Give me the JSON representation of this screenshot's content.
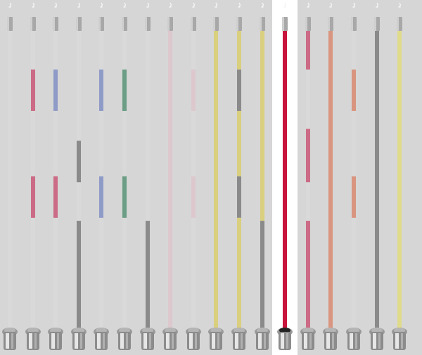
{
  "rack": {
    "base_color": "#d9d9d9",
    "rods": [
      {
        "id": "rod-1",
        "selected": false,
        "segments": []
      },
      {
        "id": "rod-2",
        "selected": false,
        "segments": [
          {
            "color": "#cc6b86",
            "span": [
              0.13,
              0.27
            ]
          },
          {
            "color": "#cc6b86",
            "span": [
              0.49,
              0.63
            ]
          }
        ]
      },
      {
        "id": "rod-3",
        "selected": false,
        "segments": [
          {
            "color": "#8f9bc7",
            "span": [
              0.13,
              0.27
            ]
          },
          {
            "color": "#cc6b86",
            "span": [
              0.49,
              0.63
            ]
          }
        ]
      },
      {
        "id": "rod-4",
        "selected": false,
        "segments": [
          {
            "color": "#8a8a8a",
            "span": [
              0.37,
              0.51
            ]
          },
          {
            "color": "#8a8a8a",
            "span": [
              0.64,
              1.0
            ]
          }
        ]
      },
      {
        "id": "rod-5",
        "selected": false,
        "segments": [
          {
            "color": "#8f9bc7",
            "span": [
              0.13,
              0.27
            ]
          },
          {
            "color": "#8f9bc7",
            "span": [
              0.49,
              0.63
            ]
          }
        ]
      },
      {
        "id": "rod-6",
        "selected": false,
        "segments": [
          {
            "color": "#6c9e85",
            "span": [
              0.13,
              0.27
            ]
          },
          {
            "color": "#6c9e85",
            "span": [
              0.49,
              0.63
            ]
          }
        ]
      },
      {
        "id": "rod-7",
        "selected": false,
        "segments": [
          {
            "color": "#8a8a8a",
            "span": [
              0.64,
              1.0
            ]
          }
        ]
      },
      {
        "id": "rod-8",
        "selected": false,
        "segments": [
          {
            "color": "#dcc8cd",
            "span": [
              0.0,
              1.0
            ]
          }
        ]
      },
      {
        "id": "rod-9",
        "selected": false,
        "segments": [
          {
            "color": "#dcc8cd",
            "span": [
              0.13,
              0.27
            ]
          },
          {
            "color": "#dcc8cd",
            "span": [
              0.49,
              0.63
            ]
          }
        ]
      },
      {
        "id": "rod-10",
        "selected": false,
        "segments": [
          {
            "color": "#d9cf7e",
            "span": [
              0.0,
              1.0
            ]
          }
        ]
      },
      {
        "id": "rod-11",
        "selected": false,
        "segments": [
          {
            "color": "#d9cf7e",
            "span": [
              0.0,
              0.13
            ]
          },
          {
            "color": "#8a8a8a",
            "span": [
              0.13,
              0.27
            ]
          },
          {
            "color": "#d9cf7e",
            "span": [
              0.27,
              0.49
            ]
          },
          {
            "color": "#8a8a8a",
            "span": [
              0.49,
              0.63
            ]
          },
          {
            "color": "#d9cf7e",
            "span": [
              0.63,
              1.0
            ]
          }
        ]
      },
      {
        "id": "rod-12",
        "selected": false,
        "segments": [
          {
            "color": "#d9cf7e",
            "span": [
              0.0,
              0.64
            ]
          },
          {
            "color": "#8a8a8a",
            "span": [
              0.64,
              1.0
            ]
          }
        ]
      },
      {
        "id": "rod-13",
        "selected": true,
        "segments": [
          {
            "color": "#c8143c",
            "span": [
              0.0,
              1.0
            ]
          }
        ]
      },
      {
        "id": "rod-14",
        "selected": false,
        "segments": [
          {
            "color": "#cc6b86",
            "span": [
              0.0,
              0.13
            ]
          },
          {
            "color": "#cc6b86",
            "span": [
              0.33,
              0.51
            ]
          },
          {
            "color": "#cc6b86",
            "span": [
              0.64,
              1.0
            ]
          }
        ]
      },
      {
        "id": "rod-15",
        "selected": false,
        "segments": [
          {
            "color": "#d99580",
            "span": [
              0.0,
              1.0
            ]
          }
        ]
      },
      {
        "id": "rod-16",
        "selected": false,
        "segments": [
          {
            "color": "#d99580",
            "span": [
              0.13,
              0.27
            ]
          },
          {
            "color": "#d99580",
            "span": [
              0.49,
              0.63
            ]
          }
        ]
      },
      {
        "id": "rod-17",
        "selected": false,
        "segments": [
          {
            "color": "#8a8a8a",
            "span": [
              0.0,
              1.0
            ]
          }
        ]
      },
      {
        "id": "rod-18",
        "selected": false,
        "segments": [
          {
            "color": "#e0db8a",
            "span": [
              0.0,
              1.0
            ]
          }
        ]
      }
    ]
  }
}
